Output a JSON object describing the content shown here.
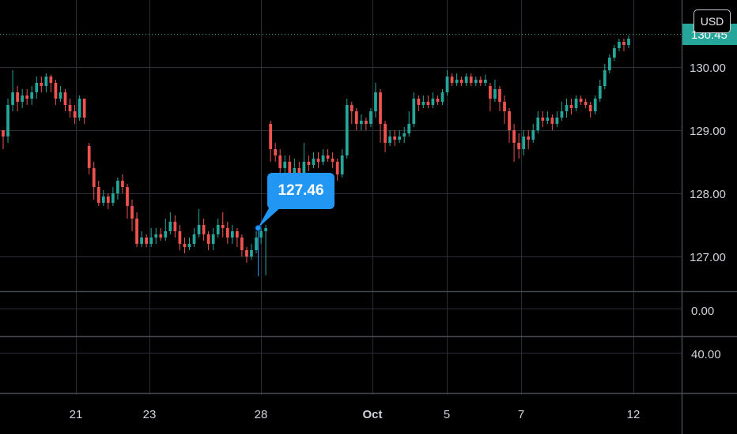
{
  "chart_data": {
    "type": "candlestick",
    "currency": "USD",
    "current_price_label": "130.45",
    "callout_label": "127.46",
    "price_ticks": [
      "130.00",
      "129.00",
      "128.00",
      "127.00"
    ],
    "sub_pane_ticks": [
      "0.00",
      "40.00"
    ],
    "date_labels": [
      "21",
      "23",
      "28",
      "Oct",
      "5",
      "7",
      "12"
    ],
    "ylim": [
      126.5,
      130.55
    ],
    "up_color": "#26a69a",
    "down_color": "#ef5350",
    "accent_color": "#2196f3",
    "candles": [
      [
        129.0,
        128.9,
        129.0,
        128.7
      ],
      [
        128.9,
        129.4,
        129.5,
        128.8
      ],
      [
        129.4,
        129.6,
        129.95,
        129.3
      ],
      [
        129.6,
        129.45,
        129.7,
        129.3
      ],
      [
        129.45,
        129.55,
        129.65,
        129.35
      ],
      [
        129.55,
        129.5,
        129.65,
        129.4
      ],
      [
        129.5,
        129.6,
        129.7,
        129.4
      ],
      [
        129.6,
        129.75,
        129.85,
        129.5
      ],
      [
        129.75,
        129.7,
        129.85,
        129.6
      ],
      [
        129.7,
        129.85,
        129.9,
        129.6
      ],
      [
        129.85,
        129.75,
        129.88,
        129.6
      ],
      [
        129.75,
        129.5,
        129.8,
        129.4
      ],
      [
        129.5,
        129.6,
        129.7,
        129.45
      ],
      [
        129.6,
        129.4,
        129.65,
        129.3
      ],
      [
        129.4,
        129.3,
        129.5,
        129.2
      ],
      [
        129.3,
        129.2,
        129.4,
        129.1
      ],
      [
        129.2,
        129.5,
        129.55,
        129.15
      ],
      [
        129.5,
        129.2,
        129.5,
        129.1
      ],
      [
        128.75,
        128.4,
        128.8,
        128.3
      ],
      [
        128.4,
        128.1,
        128.5,
        127.9
      ],
      [
        128.1,
        127.85,
        128.2,
        127.8
      ],
      [
        127.85,
        127.95,
        128.05,
        127.8
      ],
      [
        127.95,
        127.85,
        128.0,
        127.75
      ],
      [
        127.85,
        128.0,
        128.1,
        127.8
      ],
      [
        128.0,
        128.2,
        128.25,
        127.9
      ],
      [
        128.2,
        128.1,
        128.3,
        128.0
      ],
      [
        128.1,
        127.8,
        128.15,
        127.6
      ],
      [
        127.8,
        127.6,
        127.9,
        127.4
      ],
      [
        127.6,
        127.2,
        127.7,
        127.15
      ],
      [
        127.2,
        127.3,
        127.4,
        127.15
      ],
      [
        127.3,
        127.2,
        127.35,
        127.15
      ],
      [
        127.2,
        127.3,
        127.45,
        127.15
      ],
      [
        127.3,
        127.35,
        127.45,
        127.2
      ],
      [
        127.35,
        127.3,
        127.45,
        127.25
      ],
      [
        127.3,
        127.4,
        127.6,
        127.25
      ],
      [
        127.4,
        127.55,
        127.7,
        127.35
      ],
      [
        127.55,
        127.4,
        127.65,
        127.3
      ],
      [
        127.4,
        127.2,
        127.5,
        127.1
      ],
      [
        127.2,
        127.15,
        127.3,
        127.05
      ],
      [
        127.15,
        127.2,
        127.3,
        127.1
      ],
      [
        127.2,
        127.35,
        127.45,
        127.15
      ],
      [
        127.35,
        127.5,
        127.75,
        127.3
      ],
      [
        127.5,
        127.35,
        127.6,
        127.25
      ],
      [
        127.35,
        127.2,
        127.4,
        127.1
      ],
      [
        127.2,
        127.35,
        127.45,
        127.1
      ],
      [
        127.35,
        127.5,
        127.6,
        127.3
      ],
      [
        127.5,
        127.45,
        127.7,
        127.3
      ],
      [
        127.45,
        127.3,
        127.55,
        127.2
      ],
      [
        127.3,
        127.4,
        127.5,
        127.2
      ],
      [
        127.4,
        127.3,
        127.45,
        127.15
      ],
      [
        127.3,
        127.1,
        127.35,
        127.0
      ],
      [
        127.1,
        127.0,
        127.15,
        126.9
      ],
      [
        127.0,
        127.1,
        127.2,
        126.95
      ],
      [
        127.1,
        127.3,
        127.4,
        127.05
      ],
      [
        127.3,
        127.4,
        127.45,
        127.2
      ],
      [
        127.4,
        127.45,
        127.5,
        126.7
      ],
      [
        129.1,
        128.7,
        129.15,
        128.5
      ],
      [
        128.7,
        128.6,
        128.8,
        128.5
      ],
      [
        128.6,
        128.4,
        128.7,
        128.3
      ],
      [
        128.4,
        128.5,
        128.6,
        128.3
      ],
      [
        128.5,
        128.3,
        128.6,
        128.2
      ],
      [
        128.3,
        128.4,
        128.55,
        128.2
      ],
      [
        128.4,
        128.3,
        128.5,
        128.2
      ],
      [
        128.3,
        128.5,
        128.8,
        128.25
      ],
      [
        128.5,
        128.45,
        128.6,
        128.35
      ],
      [
        128.45,
        128.55,
        128.65,
        128.4
      ],
      [
        128.55,
        128.5,
        128.65,
        128.4
      ],
      [
        128.5,
        128.6,
        128.7,
        128.45
      ],
      [
        128.6,
        128.55,
        128.7,
        128.5
      ],
      [
        128.55,
        128.5,
        128.65,
        128.4
      ],
      [
        128.5,
        128.3,
        128.55,
        128.2
      ],
      [
        128.3,
        128.6,
        128.7,
        128.25
      ],
      [
        128.6,
        129.4,
        129.5,
        128.55
      ],
      [
        129.4,
        129.3,
        129.45,
        129.1
      ],
      [
        129.3,
        129.1,
        129.35,
        129.0
      ],
      [
        129.1,
        129.15,
        129.25,
        129.0
      ],
      [
        129.15,
        129.1,
        129.2,
        129.0
      ],
      [
        129.1,
        129.3,
        129.35,
        129.05
      ],
      [
        129.3,
        129.6,
        129.75,
        129.2
      ],
      [
        129.6,
        129.1,
        129.65,
        128.8
      ],
      [
        129.1,
        128.8,
        129.15,
        128.65
      ],
      [
        128.8,
        128.9,
        129.0,
        128.75
      ],
      [
        128.9,
        128.85,
        129.0,
        128.75
      ],
      [
        128.85,
        128.9,
        129.0,
        128.8
      ],
      [
        128.9,
        128.95,
        129.05,
        128.8
      ],
      [
        128.95,
        129.1,
        129.3,
        128.9
      ],
      [
        129.1,
        129.5,
        129.6,
        129.05
      ],
      [
        129.5,
        129.4,
        129.55,
        129.3
      ],
      [
        129.4,
        129.45,
        129.55,
        129.35
      ],
      [
        129.45,
        129.4,
        129.55,
        129.35
      ],
      [
        129.4,
        129.5,
        129.6,
        129.35
      ],
      [
        129.5,
        129.45,
        129.55,
        129.4
      ],
      [
        129.45,
        129.6,
        129.65,
        129.4
      ],
      [
        129.6,
        129.85,
        129.95,
        129.55
      ],
      [
        129.85,
        129.75,
        129.9,
        129.7
      ],
      [
        129.75,
        129.8,
        129.9,
        129.7
      ],
      [
        129.8,
        129.75,
        129.85,
        129.7
      ],
      [
        129.75,
        129.85,
        129.9,
        129.7
      ],
      [
        129.85,
        129.75,
        129.9,
        129.7
      ],
      [
        129.75,
        129.8,
        129.85,
        129.7
      ],
      [
        129.8,
        129.75,
        129.85,
        129.7
      ],
      [
        129.75,
        129.8,
        129.88,
        129.7
      ],
      [
        129.7,
        129.5,
        129.75,
        129.3
      ],
      [
        129.5,
        129.65,
        129.8,
        129.45
      ],
      [
        129.65,
        129.45,
        129.7,
        129.3
      ],
      [
        129.45,
        129.3,
        129.55,
        129.1
      ],
      [
        129.3,
        129.0,
        129.35,
        128.8
      ],
      [
        129.0,
        128.8,
        129.1,
        128.5
      ],
      [
        128.8,
        128.7,
        128.95,
        128.55
      ],
      [
        128.7,
        128.9,
        129.0,
        128.6
      ],
      [
        128.9,
        128.85,
        129.0,
        128.7
      ],
      [
        128.85,
        129.0,
        129.1,
        128.8
      ],
      [
        129.0,
        129.2,
        129.3,
        128.95
      ],
      [
        129.2,
        129.15,
        129.3,
        129.05
      ],
      [
        129.15,
        129.2,
        129.3,
        129.1
      ],
      [
        129.2,
        129.1,
        129.25,
        129.0
      ],
      [
        129.1,
        129.2,
        129.3,
        129.05
      ],
      [
        129.2,
        129.3,
        129.45,
        129.15
      ],
      [
        129.3,
        129.4,
        129.5,
        129.2
      ],
      [
        129.4,
        129.35,
        129.5,
        129.25
      ],
      [
        129.35,
        129.5,
        129.55,
        129.3
      ],
      [
        129.5,
        129.45,
        129.55,
        129.4
      ],
      [
        129.45,
        129.4,
        129.5,
        129.35
      ],
      [
        129.4,
        129.3,
        129.45,
        129.2
      ],
      [
        129.3,
        129.5,
        129.55,
        129.25
      ],
      [
        129.5,
        129.7,
        129.8,
        129.45
      ],
      [
        129.7,
        129.95,
        130.05,
        129.65
      ],
      [
        129.95,
        130.15,
        130.2,
        129.9
      ],
      [
        130.15,
        130.3,
        130.35,
        130.1
      ],
      [
        130.3,
        130.4,
        130.45,
        130.25
      ],
      [
        130.4,
        130.35,
        130.45,
        130.25
      ],
      [
        130.35,
        130.45,
        130.5,
        130.3
      ]
    ]
  }
}
